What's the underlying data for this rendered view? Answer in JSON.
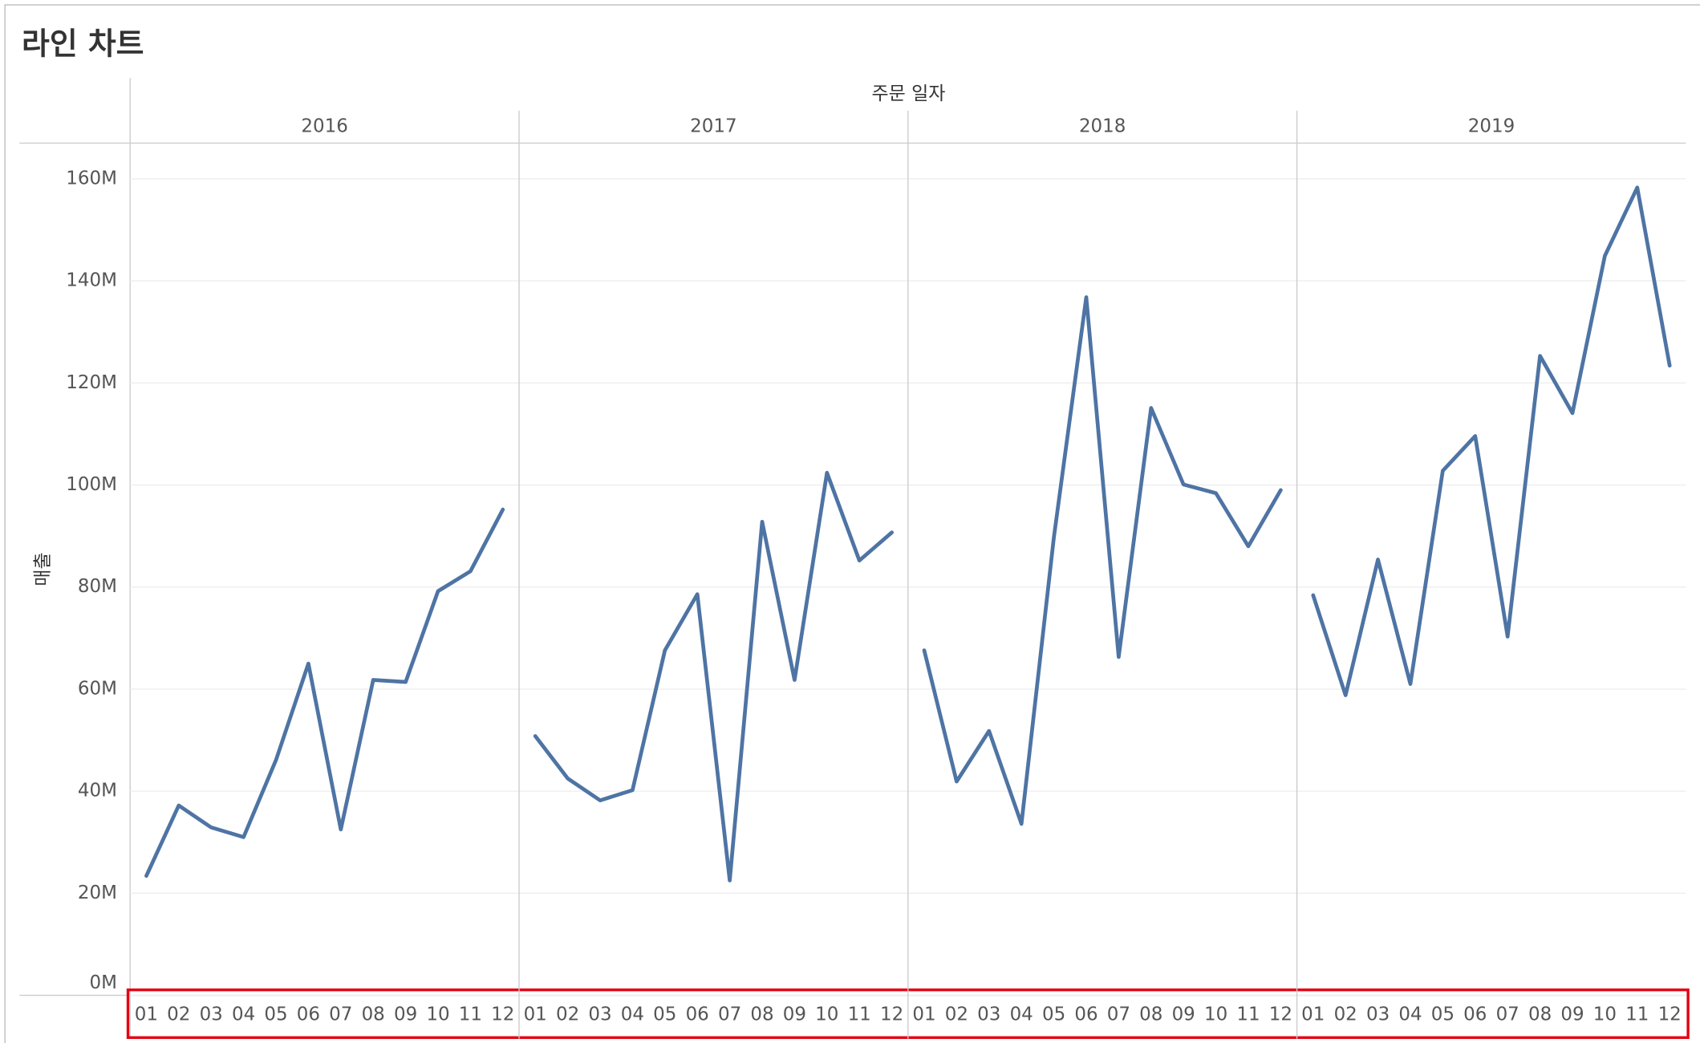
{
  "chart_data": {
    "type": "line",
    "title": "라인 차트",
    "x_label": "주문 일자",
    "y_label": "매출",
    "categories": [
      "01",
      "02",
      "03",
      "04",
      "05",
      "06",
      "07",
      "08",
      "09",
      "10",
      "11",
      "12"
    ],
    "series": [
      {
        "name": "2016",
        "color": "#4e74a4",
        "values": [
          23.4,
          37.2,
          32.9,
          31.0,
          46.1,
          65.0,
          32.5,
          61.8,
          61.4,
          79.2,
          83.1,
          95.2
        ]
      },
      {
        "name": "2017",
        "color": "#4e74a4",
        "values": [
          50.8,
          42.5,
          38.2,
          40.2,
          67.6,
          78.6,
          22.5,
          92.8,
          61.8,
          102.4,
          85.2,
          90.7
        ]
      },
      {
        "name": "2018",
        "color": "#4e74a4",
        "values": [
          67.6,
          41.9,
          51.8,
          33.6,
          89.7,
          136.8,
          66.3,
          115.1,
          100.1,
          98.4,
          88.0,
          99.0
        ]
      },
      {
        "name": "2019",
        "color": "#4e74a4",
        "values": [
          78.4,
          58.8,
          85.4,
          61.0,
          102.8,
          109.6,
          70.3,
          125.3,
          114.1,
          144.9,
          158.3,
          123.4
        ]
      }
    ],
    "ylim": [
      0,
      167
    ],
    "yticks": [
      {
        "value": 0,
        "label": "0M"
      },
      {
        "value": 20,
        "label": "20M"
      },
      {
        "value": 40,
        "label": "40M"
      },
      {
        "value": 60,
        "label": "60M"
      },
      {
        "value": 80,
        "label": "80M"
      },
      {
        "value": 100,
        "label": "100M"
      },
      {
        "value": 120,
        "label": "120M"
      },
      {
        "value": 140,
        "label": "140M"
      },
      {
        "value": 160,
        "label": "160M"
      }
    ],
    "grid": true
  }
}
